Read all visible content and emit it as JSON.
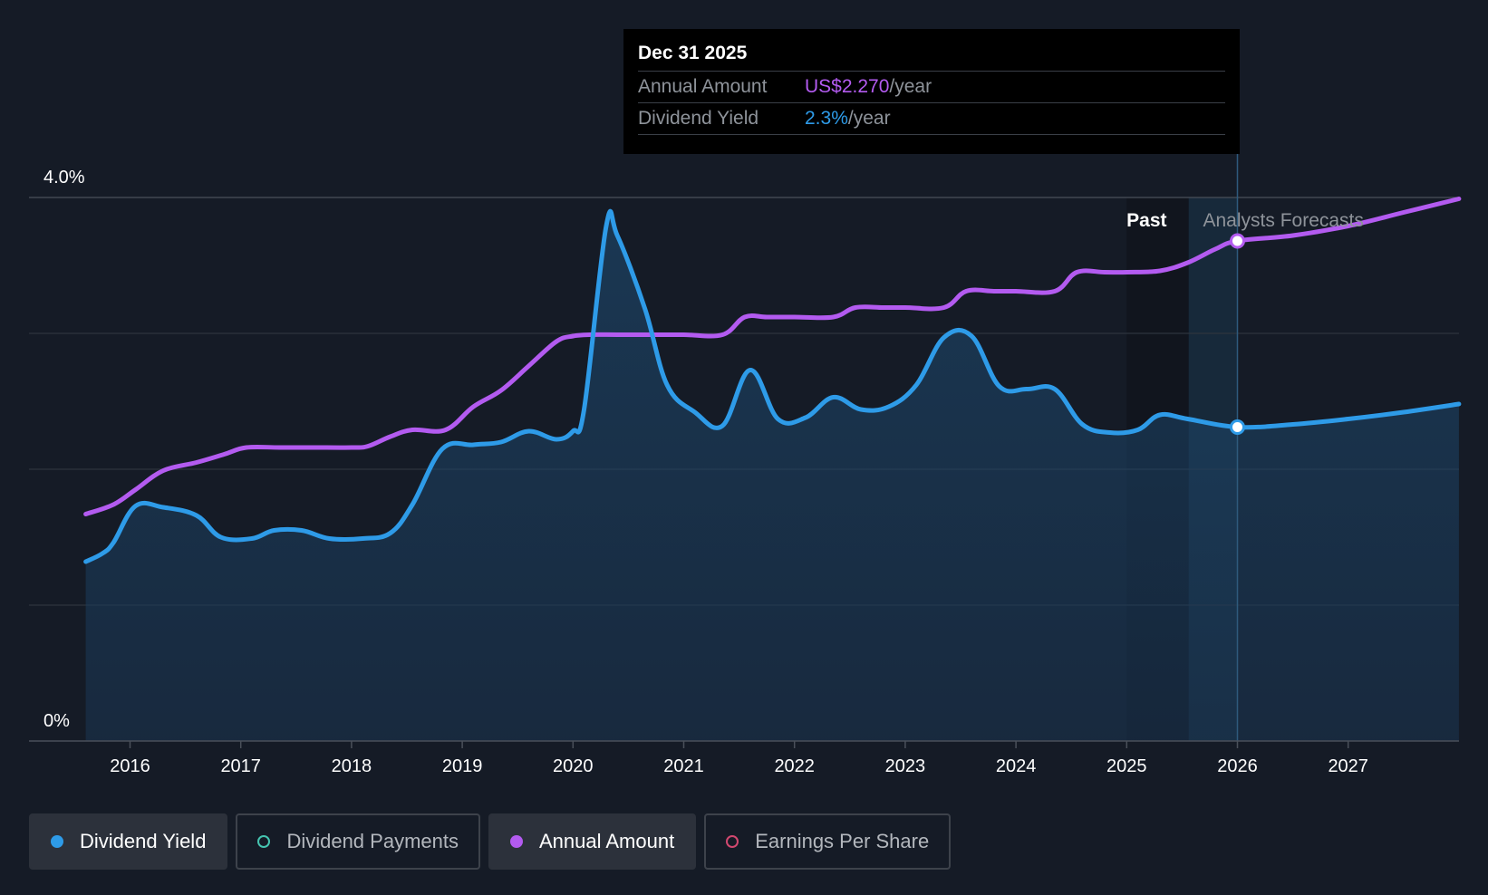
{
  "tooltip": {
    "date": "Dec 31 2025",
    "rows": [
      {
        "label": "Annual Amount",
        "value": "US$2.270",
        "unit": "/year"
      },
      {
        "label": "Dividend Yield",
        "value": "2.3%",
        "unit": "/year"
      }
    ]
  },
  "legend": {
    "items": [
      {
        "label": "Dividend Yield",
        "color": "#2e9be8",
        "active": true
      },
      {
        "label": "Dividend Payments",
        "color": "#45c4b0",
        "active": false
      },
      {
        "label": "Annual Amount",
        "color": "#b35bf0",
        "active": true
      },
      {
        "label": "Earnings Per Share",
        "color": "#d1486f",
        "active": false
      }
    ]
  },
  "chart_data": {
    "type": "line",
    "y_tick_labels": [
      "4.0%",
      "0%"
    ],
    "ylim": [
      0,
      4.0
    ],
    "xlim": [
      2015.0,
      2028.0
    ],
    "x_tick_labels": [
      "2016",
      "2017",
      "2018",
      "2019",
      "2020",
      "2021",
      "2022",
      "2023",
      "2024",
      "2025",
      "2026",
      "2027"
    ],
    "x_tick_values": [
      2016,
      2017,
      2018,
      2019,
      2020,
      2021,
      2022,
      2023,
      2024,
      2025,
      2026,
      2027
    ],
    "region_labels": {
      "past": "Past",
      "forecast": "Analysts Forecasts"
    },
    "past_region": [
      2025.0,
      2026.0
    ],
    "tooltip_x": 2026.0,
    "series": [
      {
        "name": "Dividend Yield",
        "color": "#2e9be8",
        "area": true,
        "x": [
          2015.6,
          2015.75,
          2015.85,
          2016.05,
          2016.3,
          2016.6,
          2016.82,
          2017.1,
          2017.3,
          2017.55,
          2017.8,
          2018.1,
          2018.35,
          2018.55,
          2018.82,
          2019.1,
          2019.35,
          2019.6,
          2019.85,
          2020.0,
          2020.1,
          2020.3,
          2020.4,
          2020.65,
          2020.85,
          2021.1,
          2021.35,
          2021.6,
          2021.85,
          2022.1,
          2022.35,
          2022.6,
          2022.85,
          2023.1,
          2023.35,
          2023.6,
          2023.85,
          2024.1,
          2024.35,
          2024.6,
          2024.85,
          2025.1,
          2025.3,
          2025.55,
          2026.0,
          2026.5,
          2027.0,
          2027.5,
          2028.0
        ],
        "values": [
          1.32,
          1.38,
          1.46,
          1.73,
          1.72,
          1.66,
          1.5,
          1.49,
          1.55,
          1.55,
          1.49,
          1.49,
          1.53,
          1.74,
          2.15,
          2.18,
          2.2,
          2.28,
          2.22,
          2.28,
          2.44,
          3.79,
          3.72,
          3.18,
          2.62,
          2.42,
          2.32,
          2.73,
          2.37,
          2.38,
          2.53,
          2.44,
          2.46,
          2.62,
          2.97,
          2.98,
          2.61,
          2.59,
          2.59,
          2.33,
          2.27,
          2.29,
          2.4,
          2.37,
          2.31,
          2.33,
          2.37,
          2.42,
          2.48
        ]
      },
      {
        "name": "Annual Amount",
        "color": "#b35bf0",
        "area": false,
        "x": [
          2015.6,
          2015.85,
          2016.05,
          2016.3,
          2016.6,
          2016.85,
          2017.05,
          2017.35,
          2017.65,
          2018.0,
          2018.15,
          2018.35,
          2018.55,
          2018.85,
          2019.1,
          2019.35,
          2019.6,
          2019.85,
          2020.0,
          2020.15,
          2020.4,
          2020.7,
          2021.0,
          2021.35,
          2021.55,
          2021.75,
          2022.0,
          2022.35,
          2022.55,
          2022.8,
          2023.0,
          2023.35,
          2023.55,
          2023.8,
          2024.0,
          2024.35,
          2024.55,
          2024.8,
          2025.0,
          2025.3,
          2025.55,
          2025.8,
          2026.0,
          2026.5,
          2027.0,
          2027.5,
          2028.0
        ],
        "values": [
          1.67,
          1.74,
          1.85,
          1.99,
          2.05,
          2.11,
          2.16,
          2.16,
          2.16,
          2.16,
          2.17,
          2.24,
          2.29,
          2.29,
          2.46,
          2.58,
          2.76,
          2.94,
          2.98,
          2.99,
          2.99,
          2.99,
          2.99,
          2.99,
          3.12,
          3.12,
          3.12,
          3.12,
          3.19,
          3.19,
          3.19,
          3.19,
          3.31,
          3.31,
          3.31,
          3.31,
          3.45,
          3.45,
          3.45,
          3.46,
          3.52,
          3.62,
          3.68,
          3.72,
          3.79,
          3.89,
          3.99
        ]
      }
    ]
  }
}
